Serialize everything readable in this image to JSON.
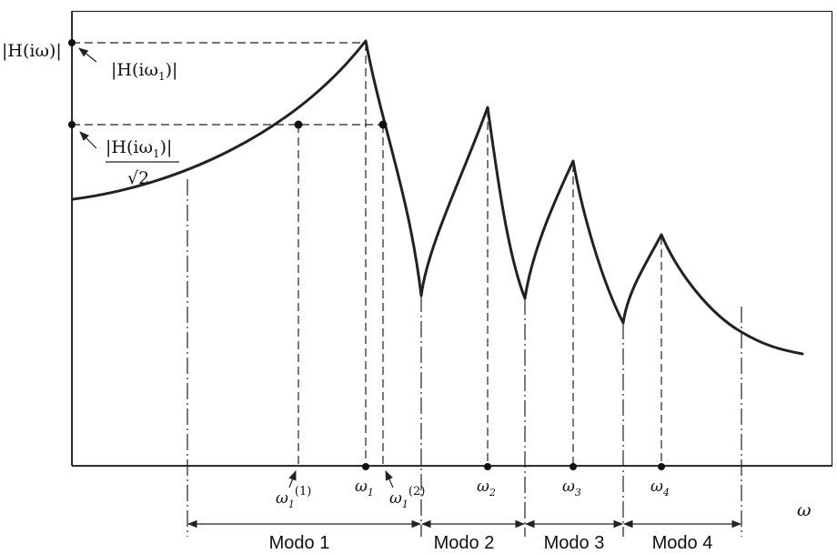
{
  "labels": {
    "y_axis": "|H(iω)|",
    "x_axis": "ω",
    "peak_label_text": "|H(iω",
    "peak_label_sub": "1",
    "peak_label_close": ")|",
    "halfpower_num_text": "|H(iω",
    "halfpower_num_sub": "1",
    "halfpower_num_close": ")|",
    "halfpower_den": "√2",
    "omega1_lower": "ω",
    "omega1_lower_sub": "1",
    "omega1_lower_sup": "(1)",
    "omega1": "ω",
    "omega1_sub": "1",
    "omega1_upper": "ω",
    "omega1_upper_sub": "1",
    "omega1_upper_sup": "(2)",
    "omega2": "ω",
    "omega2_sub": "2",
    "omega3": "ω",
    "omega3_sub": "3",
    "omega4": "ω",
    "omega4_sub": "4"
  },
  "modes": [
    {
      "label": "Modo 1"
    },
    {
      "label": "Modo 2"
    },
    {
      "label": "Modo 3"
    },
    {
      "label": "Modo 4"
    }
  ]
}
